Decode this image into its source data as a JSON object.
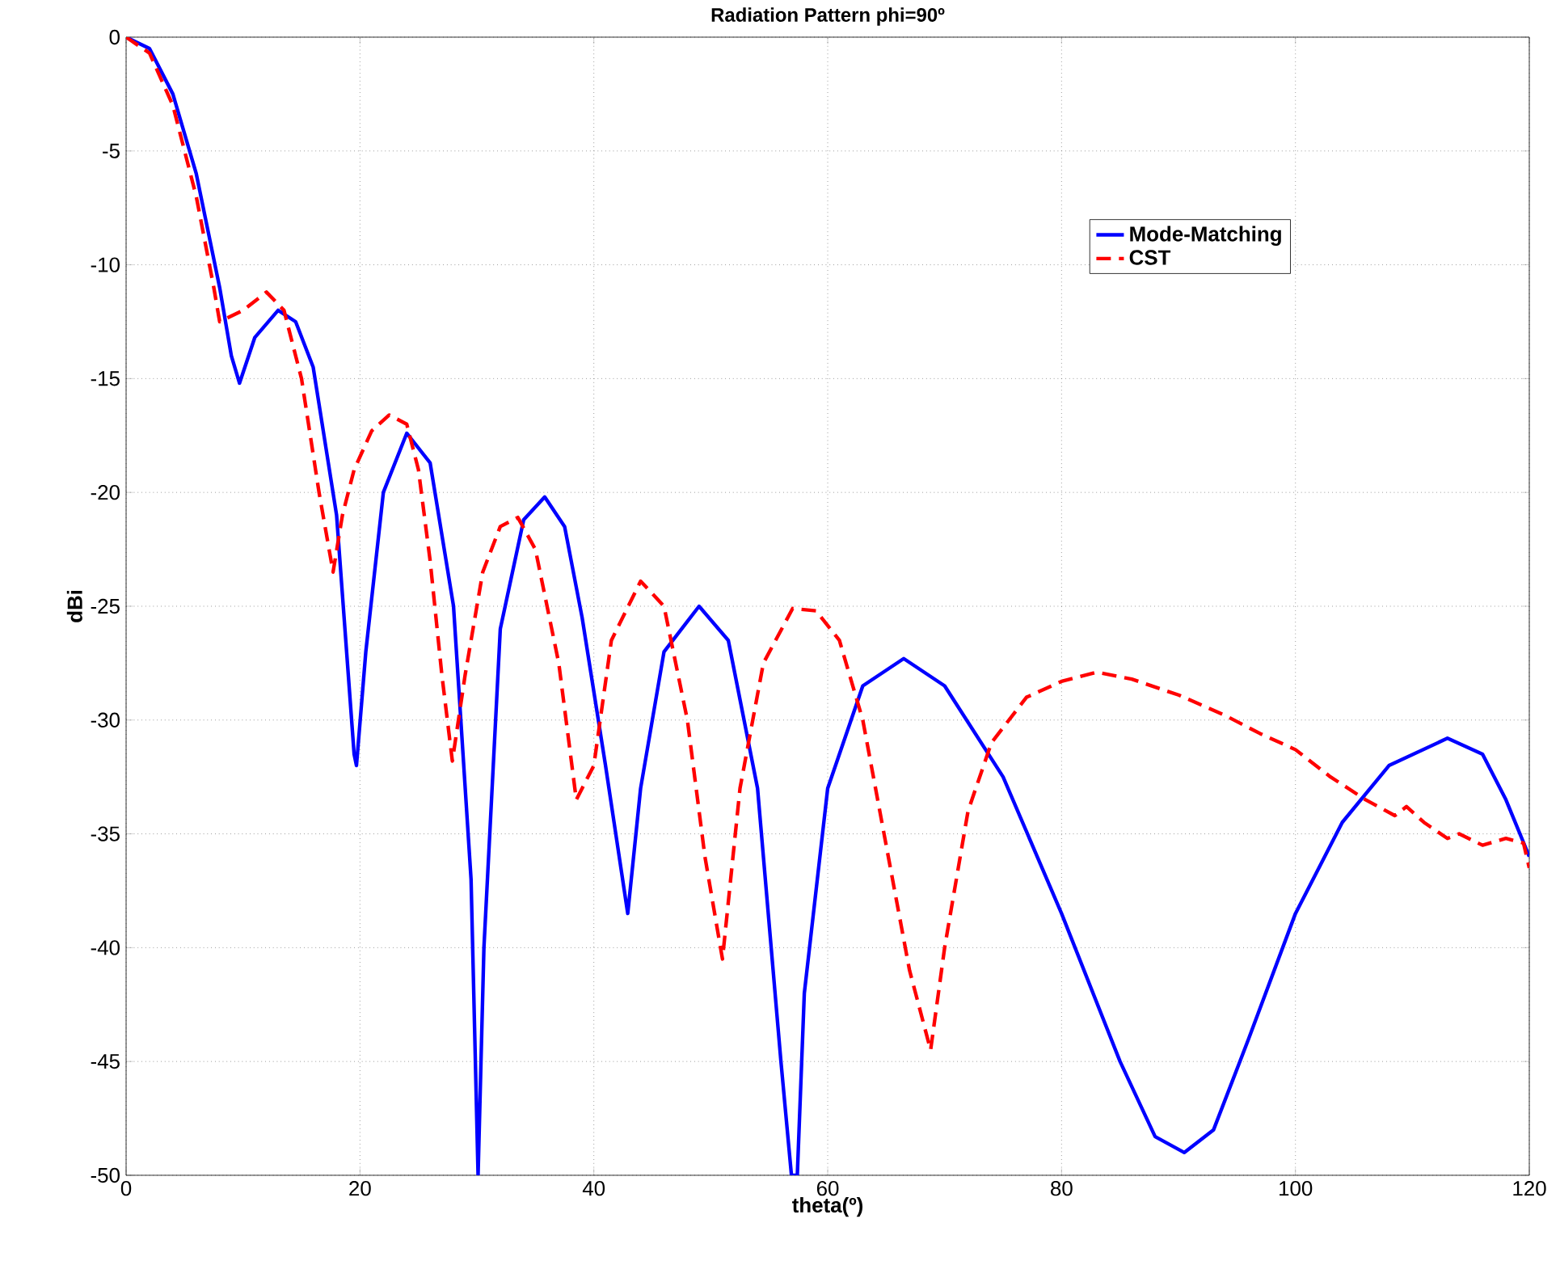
{
  "chart_data": {
    "type": "line",
    "title": "Radiation Pattern phi=90º",
    "xlabel": "theta(º)",
    "ylabel": "dBi",
    "xlim": [
      0,
      120
    ],
    "ylim": [
      -50,
      0
    ],
    "xticks": [
      0,
      20,
      40,
      60,
      80,
      100,
      120
    ],
    "yticks": [
      -50,
      -45,
      -40,
      -35,
      -30,
      -25,
      -20,
      -15,
      -10,
      -5,
      0
    ],
    "grid": true,
    "legend": "top right",
    "series": [
      {
        "name": "Mode-Matching",
        "color": "#0000ff",
        "line_style": "solid",
        "x": [
          0,
          2,
          4,
          6,
          8,
          9,
          9.7,
          11,
          13,
          14.5,
          16,
          18,
          19.5,
          19.7,
          20.5,
          22,
          24,
          26,
          28,
          29.5,
          30.1,
          30.6,
          32,
          34,
          35.8,
          37.5,
          39,
          41,
          42.9,
          44,
          46,
          49,
          51.5,
          54,
          56,
          56.9,
          57.4,
          58,
          60,
          63,
          66.5,
          70,
          75,
          80,
          85,
          88,
          90.5,
          93,
          96,
          100,
          104,
          108,
          113,
          116,
          118,
          120
        ],
        "values": [
          0,
          -0.5,
          -2.5,
          -6,
          -11,
          -14,
          -15.2,
          -13.2,
          -12,
          -12.5,
          -14.5,
          -21,
          -31.5,
          -32,
          -27,
          -20,
          -17.4,
          -18.7,
          -25,
          -37,
          -50,
          -40,
          -26,
          -21.2,
          -20.2,
          -21.5,
          -25.5,
          -32,
          -38.5,
          -33,
          -27,
          -25,
          -26.5,
          -33,
          -45,
          -50,
          -50,
          -42,
          -33,
          -28.5,
          -27.3,
          -28.5,
          -32.5,
          -38.5,
          -45,
          -48.3,
          -49,
          -48,
          -44,
          -38.5,
          -34.5,
          -32,
          -30.8,
          -31.5,
          -33.5,
          -36
        ]
      },
      {
        "name": "CST",
        "color": "#ff0000",
        "line_style": "dashed",
        "x": [
          0,
          2,
          4,
          6,
          7.5,
          8,
          10,
          12,
          13.5,
          15,
          16.5,
          17.7,
          18.5,
          19.5,
          21,
          22.5,
          24,
          25,
          26,
          27,
          27.9,
          29,
          30.5,
          32,
          33.5,
          35,
          37,
          38.5,
          40,
          41.5,
          44,
          46,
          48,
          49.5,
          51,
          52.5,
          54.5,
          57,
          59,
          61,
          63,
          65,
          67,
          68.8,
          70,
          72,
          74,
          77,
          80,
          83,
          86,
          90,
          94,
          97,
          100,
          103,
          106,
          108.5,
          109.5,
          111,
          113,
          114,
          116,
          118,
          119.5,
          120
        ],
        "values": [
          0,
          -0.7,
          -3,
          -7,
          -11,
          -12.5,
          -12,
          -11.2,
          -12,
          -15,
          -20,
          -23.5,
          -21,
          -19,
          -17.3,
          -16.6,
          -17,
          -19,
          -23,
          -28,
          -31.8,
          -28,
          -23.5,
          -21.5,
          -21.1,
          -22.5,
          -27.5,
          -33.5,
          -32,
          -26.5,
          -23.9,
          -25,
          -30,
          -36,
          -40.5,
          -33,
          -27.5,
          -25.1,
          -25.2,
          -26.5,
          -30,
          -35.5,
          -41,
          -44.5,
          -40,
          -34,
          -31,
          -29,
          -28.3,
          -27.9,
          -28.2,
          -28.9,
          -29.8,
          -30.6,
          -31.3,
          -32.5,
          -33.5,
          -34.2,
          -33.8,
          -34.5,
          -35.2,
          -35,
          -35.5,
          -35.2,
          -35.4,
          -36.5
        ]
      }
    ]
  }
}
